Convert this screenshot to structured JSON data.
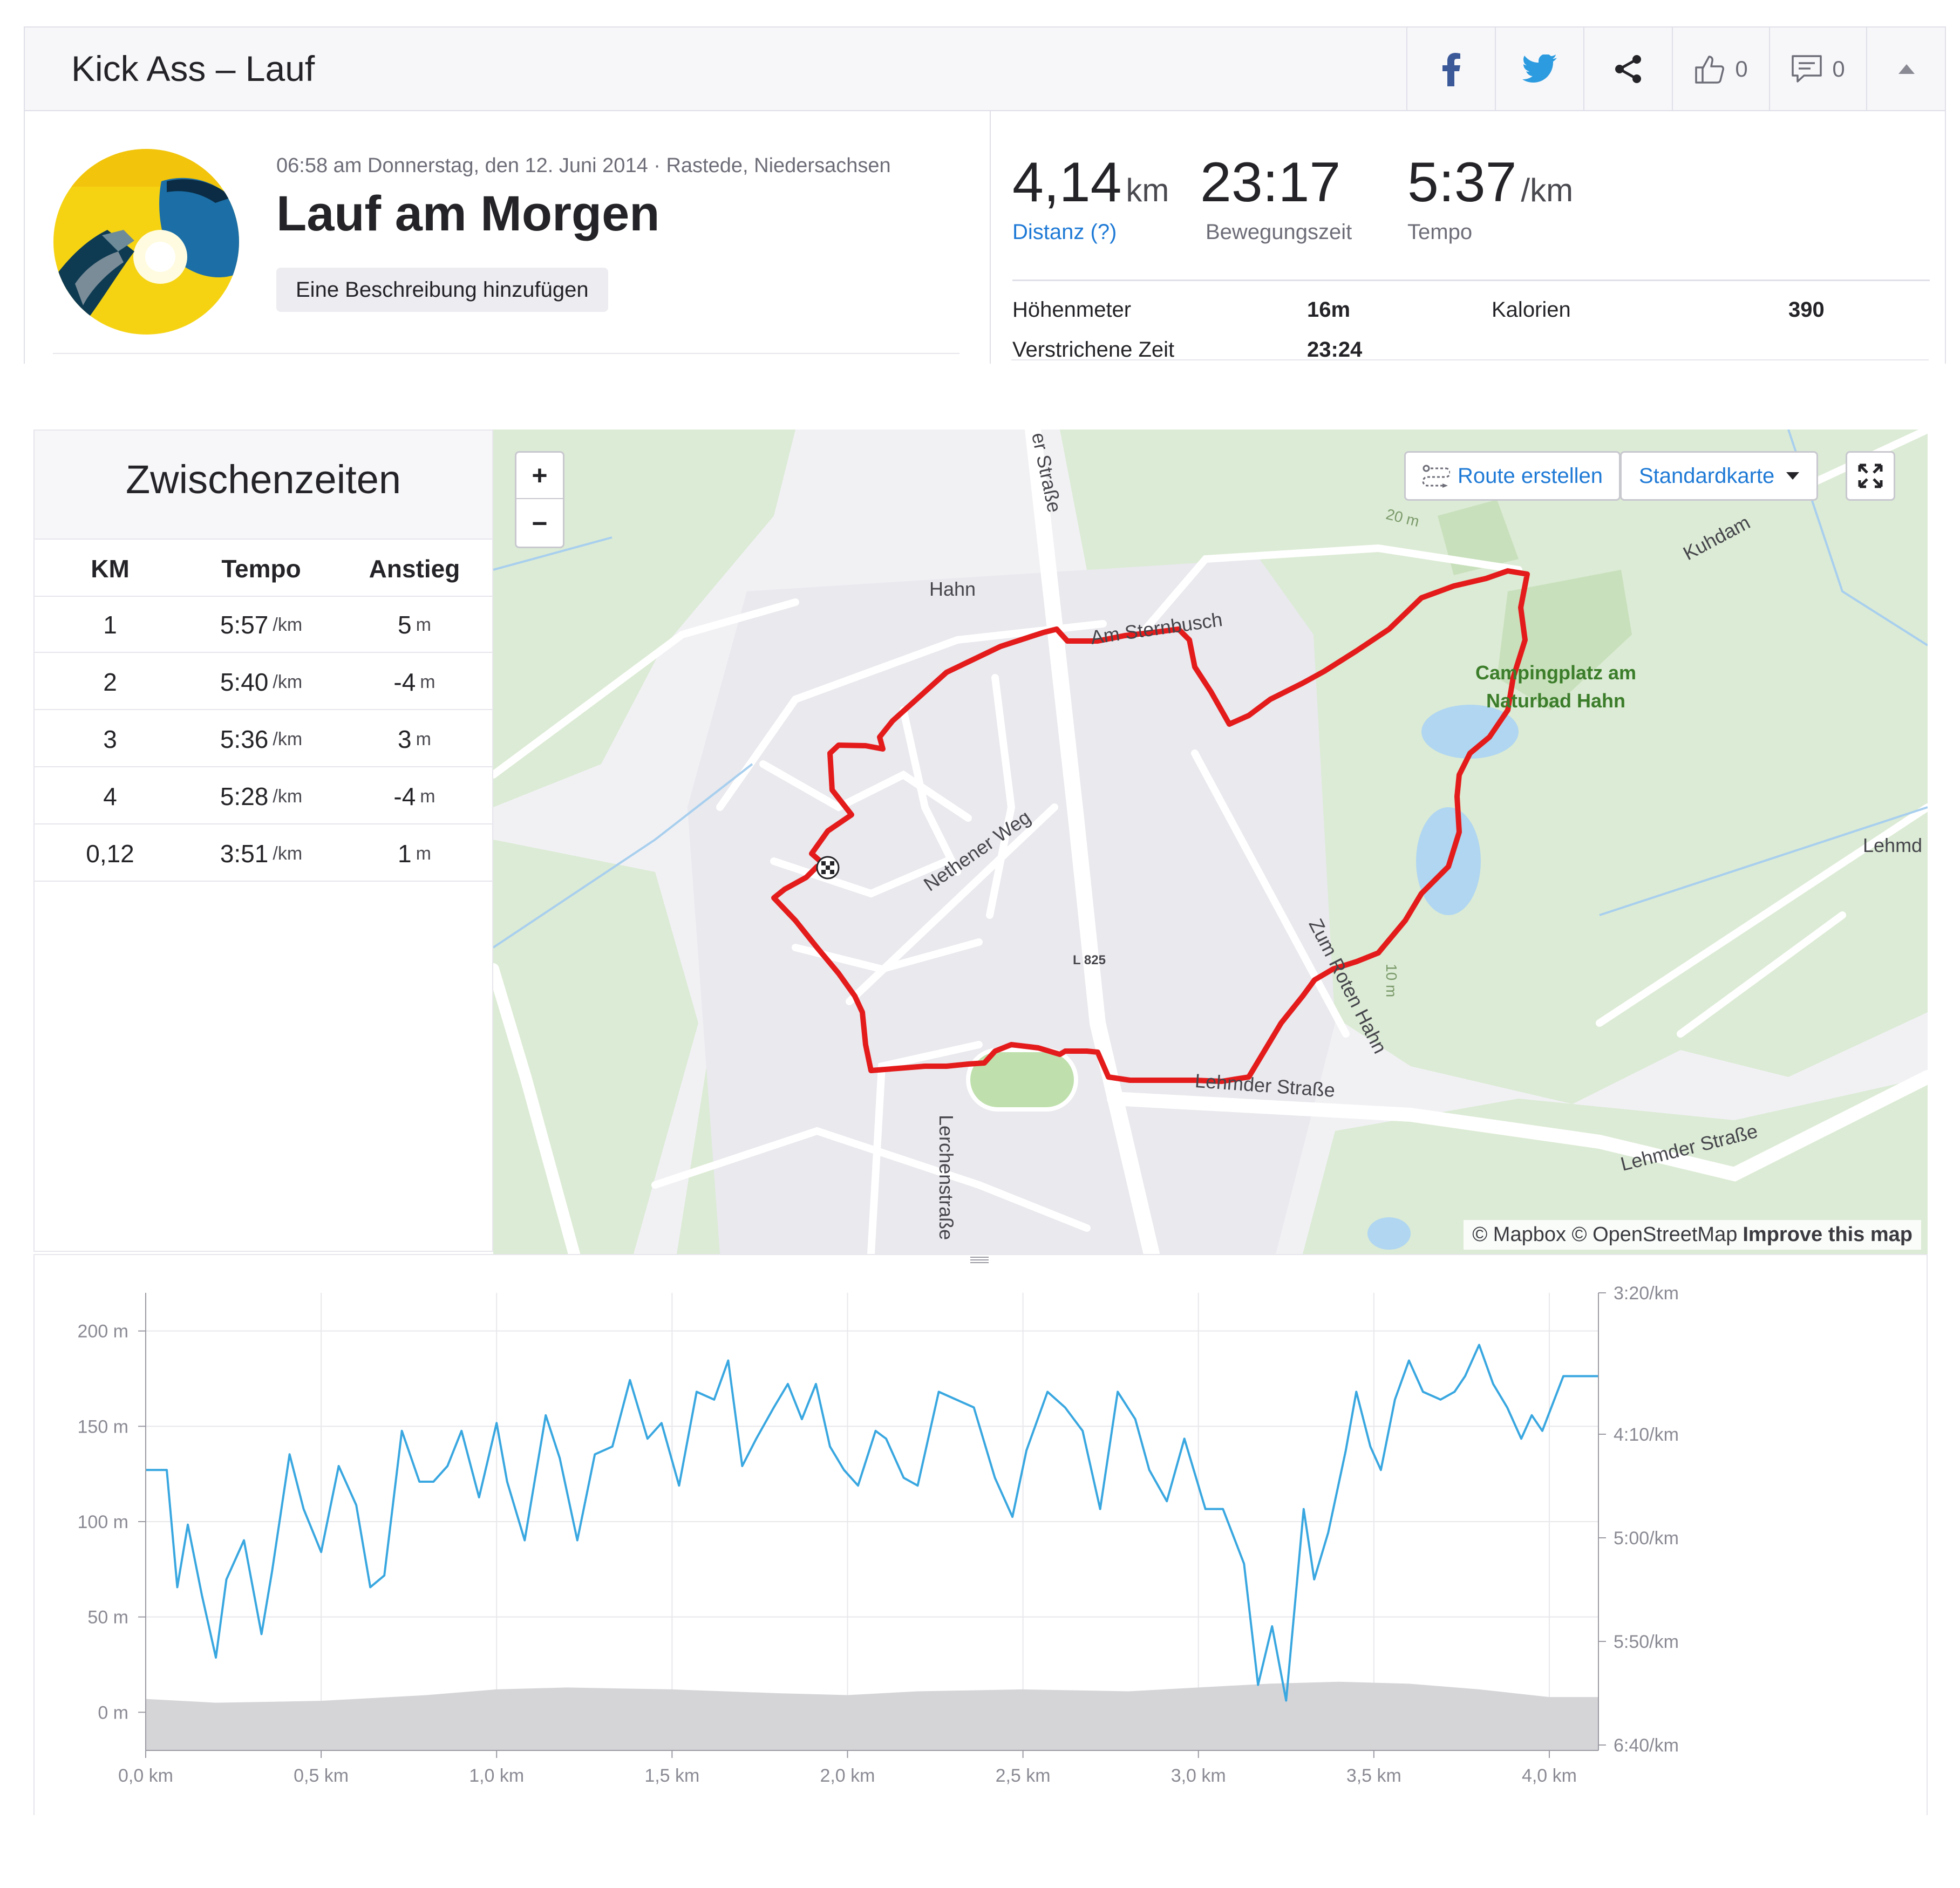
{
  "header": {
    "activity_type_title": "Kick Ass – Lauf",
    "kudos_count": "0",
    "comments_count": "0"
  },
  "activity": {
    "datetime_location": "06:58 am Donnerstag, den 12. Juni 2014 · Rastede, Niedersachsen",
    "name": "Lauf am Morgen",
    "add_description_label": "Eine Beschreibung hinzufügen"
  },
  "stats": {
    "distance": {
      "value": "4,14",
      "unit": "km",
      "label": "Distanz (?)"
    },
    "moving_time": {
      "value": "23:17",
      "label": "Bewegungszeit"
    },
    "pace": {
      "value": "5:37",
      "unit": "/km",
      "label": "Tempo"
    },
    "elevation_gain": {
      "label": "Höhenmeter",
      "value": "16m"
    },
    "calories": {
      "label": "Kalorien",
      "value": "390"
    },
    "elapsed_time": {
      "label": "Verstrichene Zeit",
      "value": "23:24"
    }
  },
  "splits": {
    "title": "Zwischenzeiten",
    "columns": [
      "KM",
      "Tempo",
      "Anstieg"
    ],
    "rows": [
      {
        "km": "1",
        "pace": "5:57",
        "pace_unit": "/km",
        "elev": "5",
        "elev_unit": "m"
      },
      {
        "km": "2",
        "pace": "5:40",
        "pace_unit": "/km",
        "elev": "-4",
        "elev_unit": "m"
      },
      {
        "km": "3",
        "pace": "5:36",
        "pace_unit": "/km",
        "elev": "3",
        "elev_unit": "m"
      },
      {
        "km": "4",
        "pace": "5:28",
        "pace_unit": "/km",
        "elev": "-4",
        "elev_unit": "m"
      },
      {
        "km": "0,12",
        "pace": "3:51",
        "pace_unit": "/km",
        "elev": "1",
        "elev_unit": "m"
      }
    ]
  },
  "map": {
    "zoom_in": "+",
    "zoom_out": "−",
    "route_create_label": "Route erstellen",
    "map_type_label": "Standardkarte",
    "attribution": "© Mapbox © OpenStreetMap",
    "improve_link": "Improve this map",
    "labels": {
      "hahn": "Hahn",
      "am_sternbusch": "Am Sternbusch",
      "campingplatz_1": "Campingplatz am",
      "campingplatz_2": "Naturbad Hahn",
      "nethener_weg": "Nethener Weg",
      "zum_roten_hahn": "Zum Roten Hahn",
      "l825": "L 825",
      "lehmder_strasse_1": "Lehmder Straße",
      "lehmder_strasse_2": "Lehmder Straße",
      "lerchenstrasse": "Lerchenstraße",
      "er_strasse": "er Straße",
      "kuhdamm": "Kuhdam",
      "lehmden": "Lehmd",
      "contour_20": "20 m",
      "contour_10": "10 m"
    },
    "colors": {
      "route": "#e41b1b",
      "road": "#ffffff",
      "green": "#cfe5c2",
      "water": "#a9d3f2",
      "land": "#ededf3"
    }
  },
  "chart_data": {
    "type": "area",
    "x_unit": "km",
    "xlim": [
      0,
      4.14
    ],
    "x_ticks": [
      "0,0 km",
      "0,5 km",
      "1,0 km",
      "1,5 km",
      "2,0 km",
      "2,5 km",
      "3,0 km",
      "3,5 km",
      "4,0 km"
    ],
    "y_left_ticks": [
      "0 m",
      "50 m",
      "100 m",
      "150 m",
      "200 m"
    ],
    "ylim_left": [
      -20,
      220
    ],
    "y_right_ticks": [
      "6:40/km",
      "5:50/km",
      "5:00/km",
      "4:10/km",
      "3:20/km"
    ],
    "grid": true,
    "series": [
      {
        "axis": "left",
        "style": "area-gray",
        "color": "#d5d5d8",
        "x": [
          0,
          0.2,
          0.5,
          0.8,
          1.0,
          1.2,
          1.5,
          1.8,
          2.0,
          2.2,
          2.5,
          2.8,
          3.0,
          3.2,
          3.4,
          3.6,
          3.8,
          4.0,
          4.14
        ],
        "y": [
          7,
          5,
          6,
          9,
          12,
          13,
          12,
          10,
          9,
          11,
          12,
          11,
          13,
          15,
          16,
          15,
          12,
          8,
          8
        ]
      },
      {
        "axis": "right",
        "style": "line",
        "color": "#39a7e0",
        "x": [
          0,
          0.06,
          0.09,
          0.12,
          0.16,
          0.2,
          0.23,
          0.28,
          0.33,
          0.36,
          0.41,
          0.45,
          0.5,
          0.55,
          0.6,
          0.64,
          0.68,
          0.73,
          0.78,
          0.82,
          0.86,
          0.9,
          0.95,
          1.0,
          1.03,
          1.08,
          1.14,
          1.18,
          1.23,
          1.28,
          1.33,
          1.38,
          1.43,
          1.47,
          1.52,
          1.57,
          1.62,
          1.66,
          1.7,
          1.74,
          1.79,
          1.83,
          1.87,
          1.91,
          1.95,
          1.99,
          2.03,
          2.08,
          2.11,
          2.16,
          2.2,
          2.26,
          2.31,
          2.36,
          2.42,
          2.47,
          2.51,
          2.57,
          2.62,
          2.67,
          2.72,
          2.77,
          2.82,
          2.86,
          2.91,
          2.96,
          3.02,
          3.07,
          3.13,
          3.17,
          3.21,
          3.25,
          3.3,
          3.33,
          3.37,
          3.42,
          3.45,
          3.49,
          3.52,
          3.56,
          3.6,
          3.64,
          3.69,
          3.73,
          3.76,
          3.8,
          3.84,
          3.88,
          3.92,
          3.95,
          3.98,
          4.04,
          4.14
        ],
        "y": [
          62,
          62,
          32,
          48,
          30,
          14,
          34,
          44,
          20,
          36,
          66,
          52,
          41,
          63,
          53,
          32,
          35,
          72,
          59,
          59,
          63,
          72,
          55,
          74,
          59,
          44,
          76,
          65,
          44,
          66,
          68,
          85,
          70,
          74,
          58,
          82,
          80,
          90,
          63,
          70,
          78,
          84,
          75,
          84,
          68,
          62,
          58,
          72,
          70,
          60,
          58,
          82,
          80,
          78,
          60,
          50,
          67,
          82,
          78,
          72,
          52,
          82,
          75,
          62,
          54,
          70,
          52,
          52,
          38,
          7,
          22,
          3,
          52,
          34,
          46,
          67,
          82,
          68,
          62,
          80,
          90,
          82,
          80,
          82,
          86,
          94,
          84,
          78,
          70,
          76,
          72,
          86,
          86
        ]
      }
    ]
  }
}
